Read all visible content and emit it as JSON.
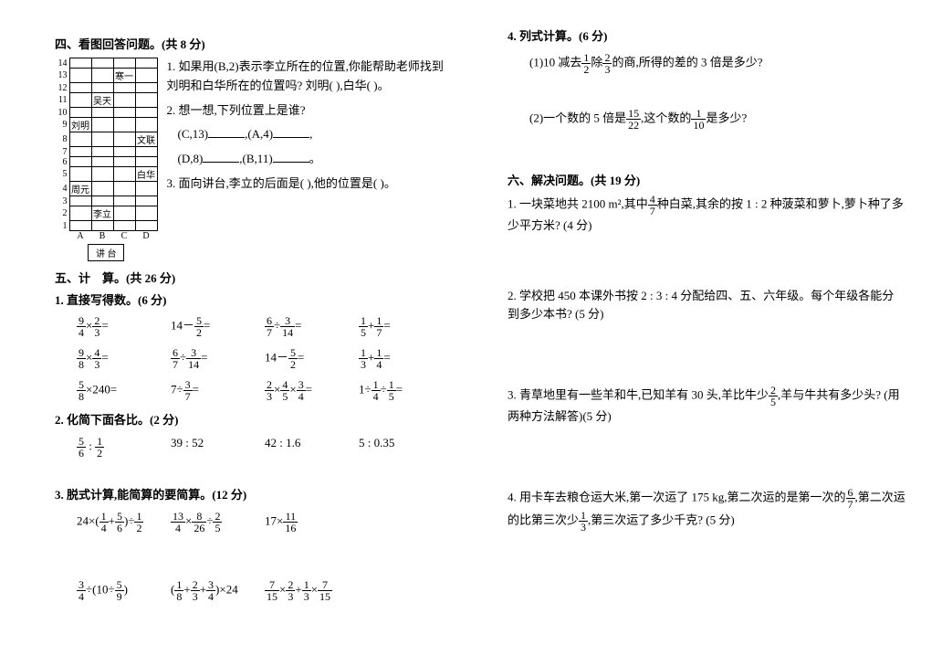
{
  "left": {
    "section4": {
      "title": "四、看图回答问题。(共 8 分)",
      "chart": {
        "rows": [
          "14",
          "13",
          "12",
          "11",
          "10",
          "9",
          "8",
          "7",
          "6",
          "5",
          "4",
          "3",
          "2",
          "1"
        ],
        "cols": [
          "A",
          "B",
          "C",
          "D"
        ],
        "labels": {
          "13_C": "寒一",
          "11_B": "吴天",
          "9_A": "刘明",
          "8_D": "文联",
          "5_D": "白华",
          "4_A": "周元",
          "2_B": "李立"
        },
        "podium": "讲  台"
      },
      "q1": "1. 如果用(B,2)表示李立所在的位置,你能帮助老师找到刘明和白华所在的位置吗? 刘明(      ),白华(      )。",
      "q2_a": "2. 想一想,下列位置上是谁?",
      "q2_b": "(C,13)",
      "q2_c": ",(A,4)",
      "q2_d": "(D,8)",
      "q2_e": ",(B,11)",
      "q3": "3. 面向讲台,李立的后面是(      ),他的位置是(      )。"
    },
    "section5": {
      "title": "五、计　算。(共 26 分)",
      "p1_title": "1. 直接写得数。(6 分)",
      "p2_title": "2. 化简下面各比。(2 分)",
      "p2_items": [
        "",
        "39 : 52",
        "42 : 1.6",
        "5 : 0.35"
      ],
      "p3_title": "3. 脱式计算,能简算的要简算。(12 分)"
    }
  },
  "right": {
    "q4_title": "4. 列式计算。(6 分)",
    "q4_1a": "(1)10 减去",
    "q4_1b": "除",
    "q4_1c": "的商,所得的差的 3 倍是多少?",
    "q4_2a": "(2)一个数的 5 倍是",
    "q4_2b": ",这个数的",
    "q4_2c": "是多少?",
    "section6_title": "六、解决问题。(共 19 分)",
    "p1a": "1. 一块菜地共 2100 m²,其中",
    "p1b": "种白菜,其余的按 1 : 2 种菠菜和萝卜,萝卜种了多少平方米? (4 分)",
    "p2": "2. 学校把 450 本课外书按 2 : 3 : 4 分配给四、五、六年级。每个年级各能分到多少本书? (5 分)",
    "p3a": "3. 青草地里有一些羊和牛,已知羊有 30 头,羊比牛少",
    "p3b": ",羊与牛共有多少头? (用两种方法解答)(5 分)",
    "p4a": "4. 用卡车去粮仓运大米,第一次运了 175 kg,第二次运的是第一次的",
    "p4b": ",第二次运的比第三次少",
    "p4c": ",第三次运了多少千克? (5 分)"
  }
}
